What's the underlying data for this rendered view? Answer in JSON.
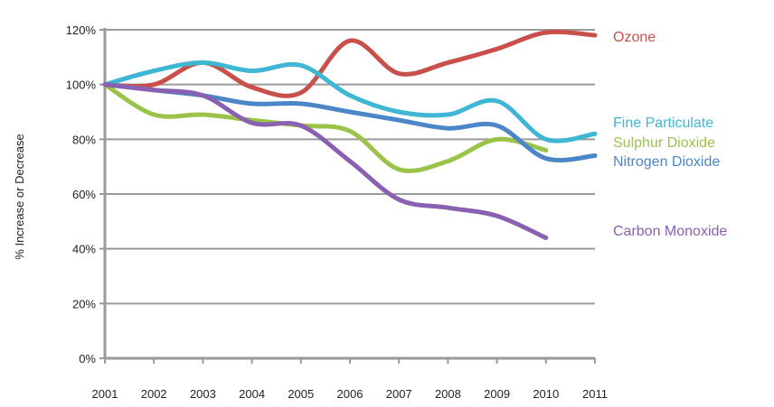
{
  "chart_data": {
    "type": "line",
    "title": "",
    "xlabel": "",
    "ylabel": "% Increase or Decrease",
    "x": [
      2001,
      2002,
      2003,
      2004,
      2005,
      2006,
      2007,
      2008,
      2009,
      2010,
      2011
    ],
    "x_tick_labels": [
      "2001",
      "2002",
      "2003",
      "2004",
      "2005",
      "2006",
      "2007",
      "2008",
      "2009",
      "2010",
      "2011"
    ],
    "y_tick_labels": [
      "0%",
      "20%",
      "40%",
      "60%",
      "80%",
      "100%",
      "120%"
    ],
    "ylim": [
      0,
      120
    ],
    "grid": true,
    "legend": "direct labels at right",
    "series": [
      {
        "name": "Ozone",
        "color": "#c9504a",
        "values": [
          100,
          100,
          108,
          99,
          97,
          116,
          104,
          108,
          113,
          119,
          118
        ]
      },
      {
        "name": "Fine Particulate",
        "color": "#3fb7d4",
        "values": [
          100,
          105,
          108,
          105,
          107,
          96,
          90,
          89,
          94,
          80,
          82
        ]
      },
      {
        "name": "Sulphur Dioxide",
        "color": "#9bc34a",
        "values": [
          100,
          89,
          89,
          87,
          85,
          83,
          69,
          72,
          80,
          76,
          null
        ]
      },
      {
        "name": "Nitrogen Dioxide",
        "color": "#4a86c8",
        "values": [
          100,
          98,
          96,
          93,
          93,
          90,
          87,
          84,
          85,
          73,
          74
        ]
      },
      {
        "name": "Carbon Monoxide",
        "color": "#8a60b0",
        "values": [
          100,
          98,
          96,
          86,
          85,
          72,
          58,
          55,
          52,
          44,
          null
        ]
      }
    ]
  }
}
